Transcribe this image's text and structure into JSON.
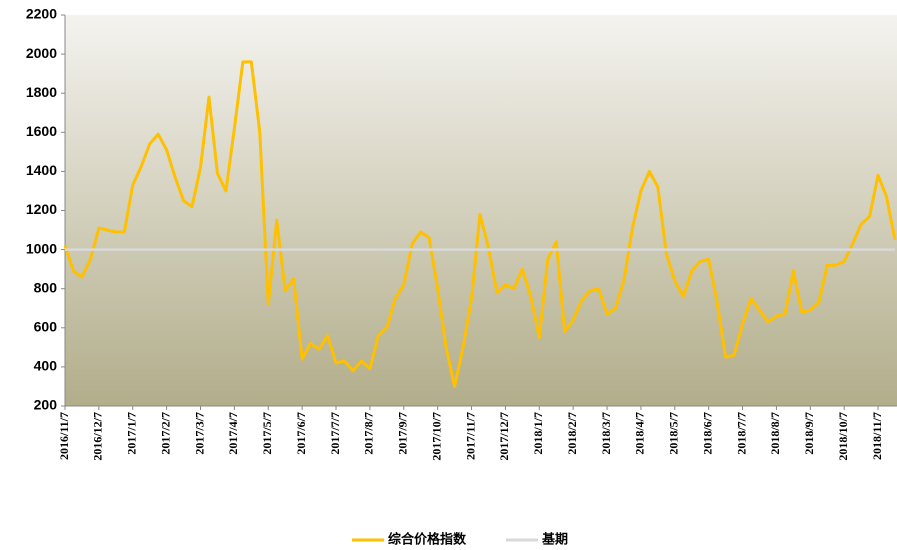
{
  "chart_data": {
    "type": "line",
    "categories": [
      "2016/11/7",
      null,
      null,
      null,
      "2016/12/7",
      null,
      null,
      null,
      "2017/1/7",
      null,
      null,
      null,
      "2017/2/7",
      null,
      null,
      null,
      "2017/3/7",
      null,
      null,
      null,
      "2017/4/7",
      null,
      null,
      null,
      "2017/5/7",
      null,
      null,
      null,
      "2017/6/7",
      null,
      null,
      null,
      "2017/7/7",
      null,
      null,
      null,
      "2017/8/7",
      null,
      null,
      null,
      "2017/9/7",
      null,
      null,
      null,
      "2017/10/7",
      null,
      null,
      null,
      "2017/11/7",
      null,
      null,
      null,
      "2017/12/7",
      null,
      null,
      null,
      "2018/1/7",
      null,
      null,
      null,
      "2018/2/7",
      null,
      null,
      null,
      "2018/3/7",
      null,
      null,
      null,
      "2018/4/7",
      null,
      null,
      null,
      "2018/5/7",
      null,
      null,
      null,
      "2018/6/7",
      null,
      null,
      null,
      "2018/7/7",
      null,
      null,
      null,
      "2018/8/7",
      null,
      null,
      null,
      "2018/9/7",
      null,
      null,
      null,
      "2018/10/7",
      null,
      null,
      null,
      "2018/11/7",
      null,
      null
    ],
    "series": [
      {
        "name": "综合价格指数",
        "color": "#ffc000",
        "values": [
          1020,
          890,
          860,
          950,
          1110,
          1100,
          1090,
          1090,
          1330,
          1425,
          1540,
          1590,
          1510,
          1370,
          1250,
          1220,
          1420,
          1780,
          1390,
          1300,
          1620,
          1960,
          1960,
          1600,
          720,
          1150,
          790,
          850,
          440,
          520,
          490,
          560,
          420,
          430,
          380,
          430,
          390,
          560,
          600,
          750,
          820,
          1030,
          1090,
          1060,
          800,
          500,
          300,
          500,
          750,
          1180,
          1010,
          780,
          820,
          800,
          900,
          760,
          550,
          950,
          1040,
          580,
          640,
          740,
          790,
          800,
          670,
          700,
          845,
          1110,
          1300,
          1400,
          1320,
          980,
          840,
          760,
          890,
          940,
          950,
          730,
          450,
          460,
          620,
          750,
          690,
          630,
          660,
          670,
          890,
          680,
          690,
          730,
          920,
          920,
          940,
          1030,
          1130,
          1170,
          1380,
          1270,
          1050
        ]
      },
      {
        "name": "基期",
        "color": "#d9d9d9",
        "values": [
          1000,
          1000,
          1000,
          1000,
          1000,
          1000,
          1000,
          1000,
          1000,
          1000,
          1000,
          1000,
          1000,
          1000,
          1000,
          1000,
          1000,
          1000,
          1000,
          1000,
          1000,
          1000,
          1000,
          1000,
          1000,
          1000,
          1000,
          1000,
          1000,
          1000,
          1000,
          1000,
          1000,
          1000,
          1000,
          1000,
          1000,
          1000,
          1000,
          1000,
          1000,
          1000,
          1000,
          1000,
          1000,
          1000,
          1000,
          1000,
          1000,
          1000,
          1000,
          1000,
          1000,
          1000,
          1000,
          1000,
          1000,
          1000,
          1000,
          1000,
          1000,
          1000,
          1000,
          1000,
          1000,
          1000,
          1000,
          1000,
          1000,
          1000,
          1000,
          1000,
          1000,
          1000,
          1000,
          1000,
          1000,
          1000,
          1000,
          1000,
          1000,
          1000,
          1000,
          1000,
          1000,
          1000,
          1000,
          1000,
          1000,
          1000,
          1000,
          1000,
          1000,
          1000,
          1000,
          1000,
          1000,
          1000,
          1000
        ]
      }
    ],
    "ylim": [
      200,
      2200
    ],
    "yticks": [
      200,
      400,
      600,
      800,
      1000,
      1200,
      1400,
      1600,
      1800,
      2000,
      2200
    ],
    "legend": "bottom"
  }
}
